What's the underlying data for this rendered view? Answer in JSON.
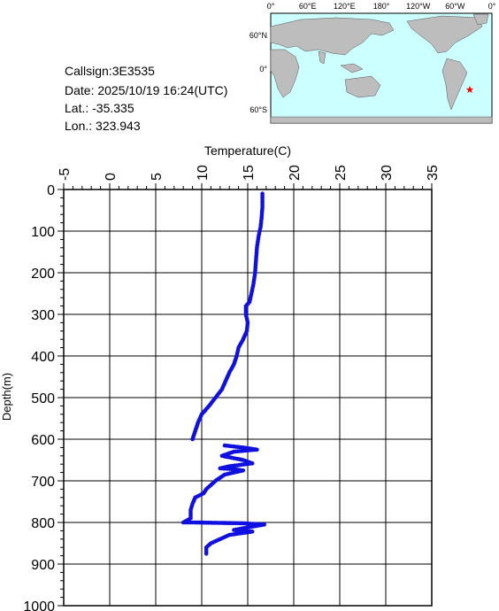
{
  "meta": {
    "callsign": "Callsign:3E3535",
    "date": "Date:  2025/10/19 16:24(UTC)",
    "lat": "Lat.:  -35.335",
    "lon": "Lon.:  323.943"
  },
  "map": {
    "lon_labels": [
      "0°",
      "60°E",
      "120°E",
      "180°",
      "120°W",
      "60°W",
      "0°"
    ],
    "lat_labels": [
      "60°N",
      "0°",
      "60°S"
    ],
    "marker": {
      "lon": 323.943,
      "lat": -35.335
    },
    "colors": {
      "ocean": "#ccffff",
      "land": "#bdbdbd",
      "marker": "#ff0000"
    }
  },
  "chart_data": {
    "type": "scatter",
    "xlabel": "Temperature(C)",
    "ylabel": "Depth(m)",
    "xlim": [
      -5,
      35
    ],
    "ylim": [
      1000,
      0
    ],
    "x_ticks": [
      "-5",
      "0",
      "5",
      "10",
      "15",
      "20",
      "25",
      "30",
      "35"
    ],
    "y_ticks": [
      "0",
      "100",
      "200",
      "300",
      "400",
      "500",
      "600",
      "700",
      "800",
      "900",
      "1000"
    ],
    "color": "#1010e0",
    "main_profile": [
      [
        16.6,
        10
      ],
      [
        16.6,
        40
      ],
      [
        16.5,
        70
      ],
      [
        16.4,
        90
      ],
      [
        16.2,
        110
      ],
      [
        16.0,
        140
      ],
      [
        15.9,
        170
      ],
      [
        15.8,
        200
      ],
      [
        15.6,
        230
      ],
      [
        15.4,
        250
      ],
      [
        15.2,
        270
      ],
      [
        14.8,
        280
      ],
      [
        14.8,
        300
      ],
      [
        15.0,
        320
      ],
      [
        14.9,
        340
      ],
      [
        14.5,
        360
      ],
      [
        14.0,
        380
      ],
      [
        13.8,
        400
      ],
      [
        13.5,
        420
      ],
      [
        13.0,
        440
      ],
      [
        12.6,
        460
      ],
      [
        12.2,
        480
      ],
      [
        11.5,
        500
      ],
      [
        10.8,
        520
      ],
      [
        10.0,
        540
      ],
      [
        9.6,
        560
      ],
      [
        9.3,
        580
      ],
      [
        9.0,
        600
      ]
    ],
    "lower_profile": [
      [
        12.5,
        615
      ],
      [
        14.5,
        620
      ],
      [
        16.0,
        625
      ],
      [
        13.5,
        630
      ],
      [
        12.2,
        640
      ],
      [
        14.5,
        650
      ],
      [
        15.5,
        658
      ],
      [
        13.0,
        665
      ],
      [
        12.0,
        670
      ],
      [
        13.5,
        672
      ],
      [
        14.5,
        675
      ],
      [
        12.5,
        685
      ],
      [
        11.5,
        700
      ],
      [
        11.0,
        710
      ],
      [
        10.5,
        720
      ],
      [
        10.2,
        730
      ],
      [
        9.3,
        740
      ],
      [
        9.0,
        755
      ],
      [
        8.8,
        770
      ],
      [
        8.8,
        790
      ],
      [
        8.0,
        800
      ],
      [
        9.0,
        800
      ],
      [
        14.5,
        802
      ],
      [
        16.8,
        805
      ],
      [
        15.0,
        812
      ],
      [
        13.5,
        818
      ],
      [
        15.5,
        822
      ],
      [
        13.0,
        830
      ],
      [
        12.0,
        840
      ],
      [
        11.0,
        850
      ],
      [
        10.5,
        860
      ],
      [
        10.5,
        875
      ]
    ]
  }
}
